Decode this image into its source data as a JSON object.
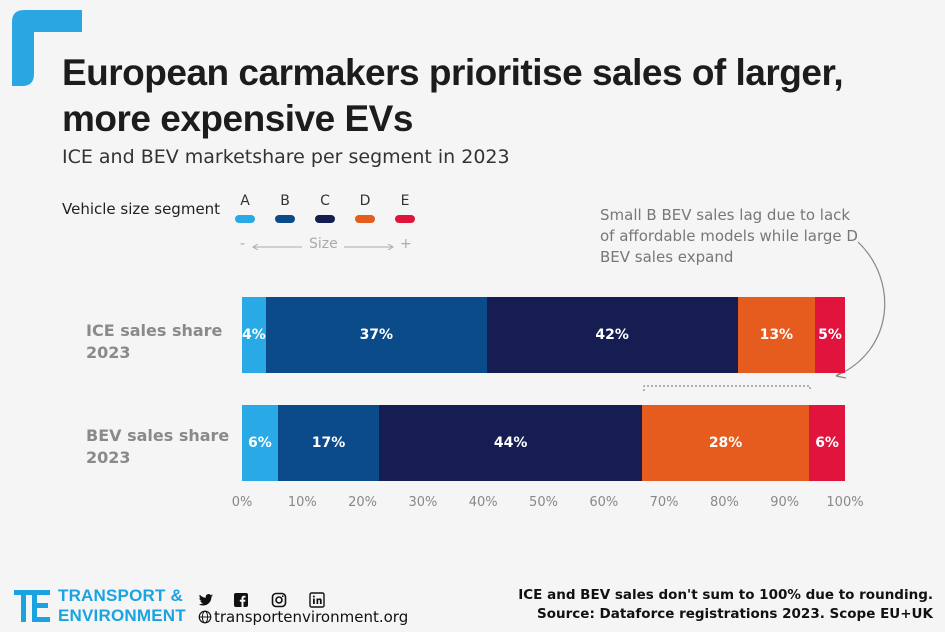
{
  "title": "European carmakers prioritise sales of larger, more expensive EVs",
  "subtitle": "ICE and BEV marketshare per segment in 2023",
  "legend": {
    "title": "Vehicle size segment",
    "items": [
      {
        "label": "A",
        "color": "#29a9e6"
      },
      {
        "label": "B",
        "color": "#0c4b8a"
      },
      {
        "label": "C",
        "color": "#161d52"
      },
      {
        "label": "D",
        "color": "#e65c1f"
      },
      {
        "label": "E",
        "color": "#e0143d"
      }
    ],
    "size_min": "-",
    "size_label": "Size",
    "size_max": "+"
  },
  "annotation": "Small B BEV sales lag due to lack of affordable models while large D BEV sales expand",
  "chart_data": {
    "type": "bar",
    "orientation": "horizontal",
    "stacked": true,
    "categories": [
      "ICE sales share 2023",
      "BEV sales share 2023"
    ],
    "series": [
      {
        "name": "A",
        "values": [
          4,
          6
        ],
        "labels": [
          "4%",
          "6%"
        ]
      },
      {
        "name": "B",
        "values": [
          37,
          17
        ],
        "labels": [
          "37%",
          "17%"
        ]
      },
      {
        "name": "C",
        "values": [
          42,
          44
        ],
        "labels": [
          "42%",
          "44%"
        ]
      },
      {
        "name": "D",
        "values": [
          13,
          28
        ],
        "labels": [
          "13%",
          "28%"
        ]
      },
      {
        "name": "E",
        "values": [
          5,
          6
        ],
        "labels": [
          "5%",
          "6%"
        ]
      }
    ],
    "xlim": [
      0,
      100
    ],
    "xticks": [
      "0%",
      "10%",
      "20%",
      "30%",
      "40%",
      "50%",
      "60%",
      "70%",
      "80%",
      "90%",
      "100%"
    ],
    "grid": false,
    "legend_position": "top-left"
  },
  "row_labels": {
    "ice_line1": "ICE sales share",
    "ice_line2": "2023",
    "bev_line1": "BEV sales share",
    "bev_line2": "2023"
  },
  "footer": {
    "note": "ICE and BEV sales don't sum to 100% due to rounding.",
    "source": "Source: Dataforce registrations 2023. Scope EU+UK",
    "org_line1": "TRANSPORT &",
    "org_line2": "ENVIRONMENT",
    "website": "transportenvironment.org",
    "logo_mark": "TE"
  },
  "icons": [
    "twitter-icon",
    "facebook-icon",
    "instagram-icon",
    "linkedin-icon",
    "globe-icon"
  ]
}
